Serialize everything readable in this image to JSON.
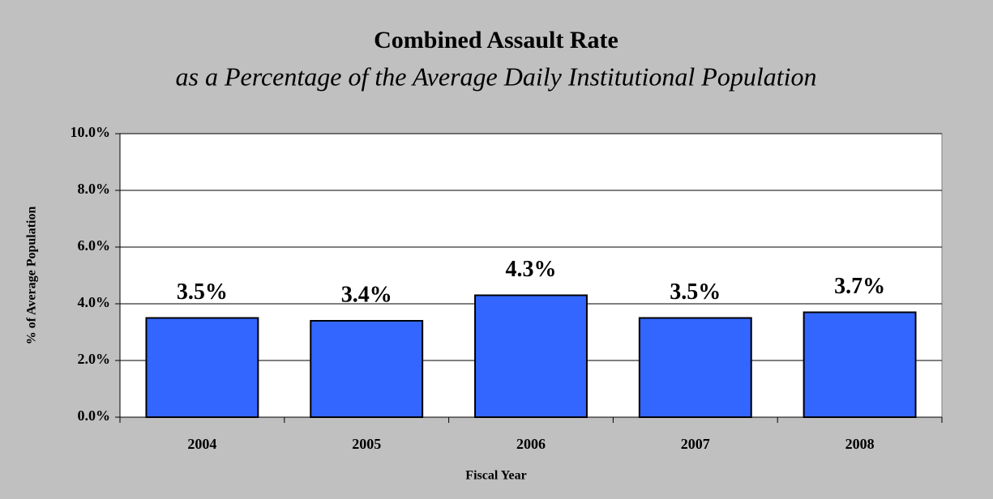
{
  "chart_data": {
    "type": "bar",
    "title": "Combined Assault Rate",
    "subtitle": "as a Percentage of the Average Daily Institutional Population",
    "x_label": "Fiscal Year",
    "y_label": "% of Average Population",
    "categories": [
      "2004",
      "2005",
      "2006",
      "2007",
      "2008"
    ],
    "values": [
      3.5,
      3.4,
      4.3,
      3.5,
      3.7
    ],
    "value_labels": [
      "3.5%",
      "3.4%",
      "4.3%",
      "3.5%",
      "3.7%"
    ],
    "color": "#3366ff",
    "ylim": [
      0,
      10
    ],
    "yticks": [
      {
        "value": 0,
        "label": "0.0%"
      },
      {
        "value": 2,
        "label": "2.0%"
      },
      {
        "value": 4,
        "label": "4.0%"
      },
      {
        "value": 6,
        "label": "6.0%"
      },
      {
        "value": 8,
        "label": "8.0%"
      },
      {
        "value": 10,
        "label": "10.0%"
      }
    ],
    "grid": true
  }
}
